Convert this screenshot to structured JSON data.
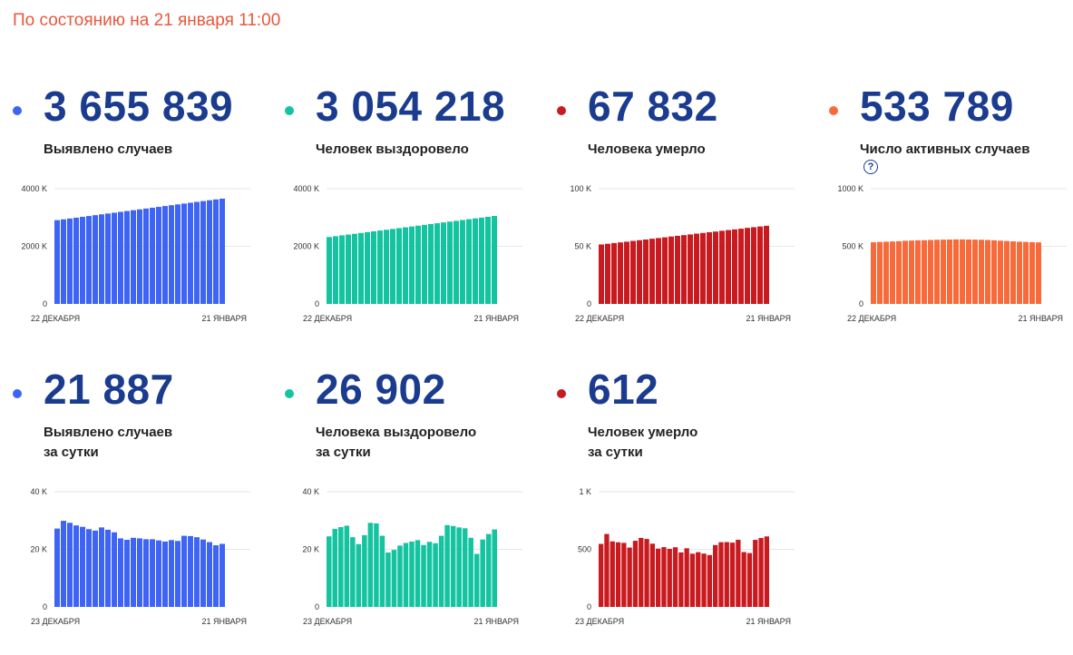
{
  "header": {
    "status": "По состоянию на 21 января 11:00"
  },
  "cards": [
    {
      "value": "3 655 839",
      "label": [
        "Выявлено случаев"
      ],
      "color": "#3e64f5",
      "help": false,
      "chart_data": {
        "type": "bar",
        "ylim": [
          0,
          4000
        ],
        "yticks": [
          "4000 K",
          "2000 K",
          "0"
        ],
        "ytick_values": [
          4000,
          2000,
          0
        ],
        "x_start": "22 ДЕКАБРЯ",
        "x_end": "21 ЯНВАРЯ",
        "values": [
          2908,
          2937,
          2965,
          2994,
          3023,
          3052,
          3081,
          3110,
          3138,
          3167,
          3196,
          3225,
          3254,
          3282,
          3311,
          3340,
          3369,
          3398,
          3427,
          3455,
          3484,
          3513,
          3542,
          3571,
          3600,
          3628,
          3656
        ]
      }
    },
    {
      "value": "3 054 218",
      "label": [
        "Человек выздоровело"
      ],
      "color": "#14c3a0",
      "help": false,
      "chart_data": {
        "type": "bar",
        "ylim": [
          0,
          4000
        ],
        "yticks": [
          "4000 K",
          "2000 K",
          "0"
        ],
        "ytick_values": [
          4000,
          2000,
          0
        ],
        "x_start": "22 ДЕКАБРЯ",
        "x_end": "21 ЯНВАРЯ",
        "values": [
          2323,
          2351,
          2379,
          2407,
          2435,
          2463,
          2491,
          2519,
          2548,
          2576,
          2604,
          2632,
          2660,
          2688,
          2716,
          2744,
          2772,
          2800,
          2829,
          2857,
          2885,
          2913,
          2941,
          2969,
          2997,
          3025,
          3054
        ]
      }
    },
    {
      "value": "67 832",
      "label": [
        "Человека умерло"
      ],
      "color": "#c81a1f",
      "help": false,
      "chart_data": {
        "type": "bar",
        "ylim": [
          0,
          100
        ],
        "yticks": [
          "100 K",
          "50 K",
          "0"
        ],
        "ytick_values": [
          100,
          50,
          0
        ],
        "x_start": "22 ДЕКАБРЯ",
        "x_end": "21 ЯНВАРЯ",
        "values": [
          51.6,
          52.2,
          52.8,
          53.4,
          54.0,
          54.7,
          55.3,
          55.9,
          56.6,
          57.2,
          57.8,
          58.5,
          59.1,
          59.7,
          60.3,
          61.0,
          61.6,
          62.2,
          62.8,
          63.5,
          64.1,
          64.7,
          65.3,
          66.0,
          66.6,
          67.2,
          67.8
        ]
      }
    },
    {
      "value": "533 789",
      "label": [
        "Число активных случаев"
      ],
      "color": "#f86a3a",
      "help": true,
      "chart_data": {
        "type": "bar",
        "ylim": [
          0,
          1000
        ],
        "yticks": [
          "1000 K",
          "500 K",
          "0"
        ],
        "ytick_values": [
          1000,
          500,
          0
        ],
        "x_start": "22 ДЕКАБРЯ",
        "x_end": "21 ЯНВАРЯ",
        "values": [
          535,
          538,
          540,
          542,
          544,
          548,
          550,
          552,
          553,
          555,
          557,
          558,
          559,
          560,
          560,
          559,
          558,
          557,
          555,
          552,
          549,
          546,
          543,
          540,
          538,
          536,
          534
        ]
      }
    },
    {
      "value": "21 887",
      "label": [
        "Выявлено случаев",
        "за сутки"
      ],
      "color": "#3e64f5",
      "help": false,
      "chart_data": {
        "type": "bar",
        "ylim": [
          0,
          40
        ],
        "yticks": [
          "40 K",
          "20 K",
          "0"
        ],
        "ytick_values": [
          40,
          20,
          0
        ],
        "x_start": "23 ДЕКАБРЯ",
        "x_end": "21 ЯНВАРЯ",
        "values": [
          27.2,
          29.9,
          29.2,
          28.3,
          27.8,
          27.0,
          26.5,
          27.6,
          26.8,
          25.9,
          23.8,
          23.3,
          24.0,
          23.8,
          23.5,
          23.5,
          23.1,
          22.7,
          23.2,
          22.9,
          24.7,
          24.6,
          24.2,
          23.4,
          22.5,
          21.4,
          21.9
        ]
      }
    },
    {
      "value": "26 902",
      "label": [
        "Человека выздоровело",
        "за сутки"
      ],
      "color": "#14c3a0",
      "help": false,
      "chart_data": {
        "type": "bar",
        "ylim": [
          0,
          40
        ],
        "yticks": [
          "40 K",
          "20 K",
          "0"
        ],
        "ytick_values": [
          40,
          20,
          0
        ],
        "x_start": "23 ДЕКАБРЯ",
        "x_end": "21 ЯНВАРЯ",
        "values": [
          24.5,
          27.1,
          27.7,
          28.2,
          24.2,
          21.8,
          24.9,
          29.2,
          29.0,
          24.7,
          18.9,
          19.8,
          21.3,
          22.2,
          22.7,
          23.2,
          21.5,
          22.6,
          22.1,
          24.7,
          28.4,
          28.1,
          27.6,
          27.3,
          24.0,
          18.4,
          23.4,
          25.3,
          26.9
        ]
      }
    },
    {
      "value": "612",
      "label": [
        "Человек умерло",
        "за сутки"
      ],
      "color": "#c81a1f",
      "help": false,
      "chart_data": {
        "type": "bar",
        "ylim": [
          0,
          1000
        ],
        "yticks": [
          "1 K",
          "500",
          "0"
        ],
        "ytick_values": [
          1000,
          500,
          0
        ],
        "x_start": "23 ДЕКАБРЯ",
        "x_end": "21 ЯНВАРЯ",
        "values": [
          547,
          633,
          569,
          561,
          556,
          515,
          574,
          599,
          590,
          549,
          506,
          519,
          504,
          518,
          473,
          509,
          462,
          475,
          463,
          450,
          537,
          562,
          563,
          558,
          583,
          476,
          467,
          582,
          598,
          612
        ]
      }
    }
  ]
}
